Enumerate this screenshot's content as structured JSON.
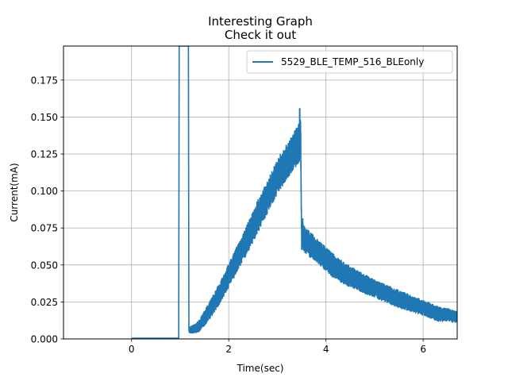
{
  "chart_data": {
    "type": "line",
    "title": "Interesting Graph",
    "subtitle": "Check it out",
    "xlabel": "Time(sec)",
    "ylabel": "Current(mA)",
    "xlim": [
      -1.4,
      6.7
    ],
    "ylim": [
      0.0,
      0.198
    ],
    "xticks": [
      0,
      2,
      4,
      6
    ],
    "yticks": [
      0.0,
      0.025,
      0.05,
      0.075,
      0.1,
      0.125,
      0.15,
      0.175
    ],
    "xtick_labels": [
      "0",
      "2",
      "4",
      "6"
    ],
    "ytick_labels": [
      "0.000",
      "0.025",
      "0.050",
      "0.075",
      "0.100",
      "0.125",
      "0.150",
      "0.175"
    ],
    "grid": true,
    "legend_position": "top-right",
    "series": [
      {
        "name": "5529_BLE_TEMP_516_BLEonly",
        "color": "#1f77b4",
        "x": [
          0.0,
          0.95,
          0.97,
          0.98,
          1.0,
          1.15,
          1.17,
          1.18,
          1.3,
          1.4,
          1.5,
          1.6,
          1.8,
          2.0,
          2.2,
          2.4,
          2.6,
          2.8,
          3.0,
          3.2,
          3.4,
          3.48,
          3.5,
          3.52,
          3.55,
          3.6,
          3.8,
          4.0,
          4.2,
          4.5,
          5.0,
          5.5,
          6.0,
          6.3,
          6.7
        ],
        "values": [
          0.0005,
          0.0005,
          0.0005,
          0.198,
          0.198,
          0.198,
          0.198,
          0.006,
          0.007,
          0.009,
          0.014,
          0.019,
          0.03,
          0.043,
          0.056,
          0.069,
          0.083,
          0.096,
          0.11,
          0.12,
          0.13,
          0.135,
          0.065,
          0.072,
          0.068,
          0.066,
          0.06,
          0.054,
          0.048,
          0.042,
          0.034,
          0.027,
          0.021,
          0.017,
          0.015
        ],
        "band": [
          0.0005,
          0.0005,
          0.0005,
          0.0,
          0.0,
          0.0,
          0.0,
          0.002,
          0.003,
          0.004,
          0.005,
          0.006,
          0.007,
          0.008,
          0.009,
          0.01,
          0.011,
          0.011,
          0.012,
          0.012,
          0.013,
          0.014,
          0.006,
          0.01,
          0.009,
          0.009,
          0.008,
          0.008,
          0.008,
          0.007,
          0.006,
          0.006,
          0.005,
          0.005,
          0.004
        ]
      }
    ]
  }
}
